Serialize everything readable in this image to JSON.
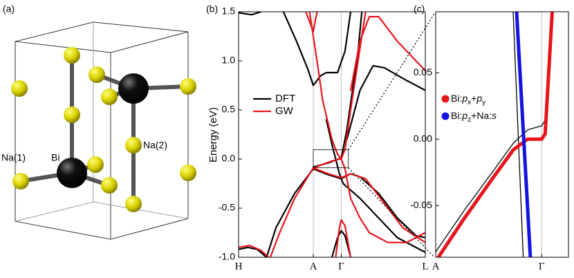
{
  "chart_data": [
    {
      "type": "structure",
      "panel_label": "(a)",
      "labels": [
        "Na(1)",
        "Bi",
        "Na(2)"
      ]
    },
    {
      "type": "line",
      "panel_label": "(b)",
      "ylabel": "Energy (eV)",
      "xlim": [
        0,
        1
      ],
      "xticks": [
        {
          "value": 0,
          "label": "H"
        },
        {
          "value": 0.4,
          "label": "A"
        },
        {
          "value": 0.55,
          "label": "Γ"
        },
        {
          "value": 1,
          "label": "L"
        }
      ],
      "ylim": [
        -1,
        1.5
      ],
      "yticks": [
        {
          "value": -1,
          "label": "-1.0"
        },
        {
          "value": -0.5,
          "label": "-0.5"
        },
        {
          "value": 0,
          "label": "0.0"
        },
        {
          "value": 0.5,
          "label": "0.5"
        },
        {
          "value": 1,
          "label": "1.0"
        },
        {
          "value": 1.5,
          "label": "1.5"
        }
      ],
      "series": [
        {
          "name": "DFT",
          "color": "#000000",
          "bands": [
            {
              "x": [
                0,
                0.07,
                0.12
              ],
              "values": [
                1.49,
                1.47,
                1.5
              ]
            },
            {
              "x": [
                0.24,
                0.31,
                0.37,
                0.4,
                0.44,
                0.47,
                0.53,
                0.57,
                0.6
              ],
              "values": [
                1.5,
                1.2,
                0.92,
                0.75,
                0.85,
                0.88,
                0.88,
                1.1,
                1.5
              ]
            },
            {
              "x": [
                0.4,
                0.48,
                0.52,
                0.55,
                0.58,
                0.61,
                0.64,
                0.66
              ],
              "values": [
                -0.08,
                -0.04,
                -0.01,
                0.01,
                0.3,
                0.7,
                1.1,
                1.5
              ]
            },
            {
              "x": [
                0.47,
                0.5,
                0.52,
                0.54,
                0.56,
                0.65,
                0.75,
                0.85,
                1
              ],
              "values": [
                0.4,
                0.15,
                0,
                -0.15,
                -0.25,
                -0.4,
                -0.6,
                -0.8,
                -0.95
              ]
            },
            {
              "x": [
                0.4,
                0.48,
                0.55,
                0.6,
                0.65,
                0.75,
                0.85,
                0.95,
                1
              ],
              "values": [
                -0.1,
                -0.16,
                -0.2,
                -0.15,
                -0.18,
                -0.35,
                -0.6,
                -0.78,
                -0.8
              ]
            },
            {
              "x": [
                0.4,
                0.3,
                0.2,
                0.15
              ],
              "values": [
                -0.1,
                -0.35,
                -0.7,
                -1
              ]
            },
            {
              "x": [
                0,
                0.05,
                0.1,
                0.15
              ],
              "values": [
                -0.92,
                -0.9,
                -0.92,
                -1
              ]
            },
            {
              "x": [
                0.5,
                0.53,
                0.55,
                0.57,
                0.6
              ],
              "values": [
                -1,
                -0.8,
                -0.73,
                -0.78,
                -1
              ]
            },
            {
              "x": [
                0.58,
                0.65,
                0.72,
                0.78,
                0.9,
                1
              ],
              "values": [
                0.2,
                0.7,
                0.95,
                0.93,
                0.8,
                0.7
              ]
            }
          ]
        },
        {
          "name": "GW",
          "color": "#e8141b",
          "bands": [
            {
              "x": [
                0.36,
                0.38,
                0.4,
                0.42
              ],
              "values": [
                1.5,
                1.4,
                1.3,
                1.5
              ]
            },
            {
              "x": [
                0.38,
                0.42,
                0.45,
                0.5,
                0.53,
                0.55,
                0.57,
                0.6,
                0.65,
                0.7,
                0.8,
                0.9,
                1
              ],
              "values": [
                1.5,
                1,
                0.6,
                0.2,
                0.05,
                0,
                -0.1,
                -0.4,
                -0.6,
                -0.75,
                -0.85,
                -0.85,
                -0.75
              ]
            },
            {
              "x": [
                0.4,
                0.5,
                0.54,
                0.55,
                0.57,
                0.6,
                0.64,
                0.68
              ],
              "values": [
                -0.09,
                -0.02,
                0,
                0,
                0.1,
                0.5,
                1,
                1.5
              ]
            },
            {
              "x": [
                0.4,
                0.48,
                0.55,
                0.6,
                0.68,
                0.78,
                0.88,
                1
              ],
              "values": [
                -0.09,
                -0.15,
                -0.19,
                -0.15,
                -0.2,
                -0.45,
                -0.7,
                -0.85
              ]
            },
            {
              "x": [
                0.4,
                0.3,
                0.22,
                0.17
              ],
              "values": [
                -0.09,
                -0.4,
                -0.75,
                -1
              ]
            },
            {
              "x": [
                0,
                0.06,
                0.12,
                0.16
              ],
              "values": [
                -0.9,
                -0.88,
                -0.93,
                -1
              ]
            },
            {
              "x": [
                0.52,
                0.54,
                0.55,
                0.57,
                0.6
              ],
              "values": [
                -1,
                -0.7,
                -0.62,
                -0.68,
                -1
              ]
            },
            {
              "x": [
                0.6,
                0.65,
                0.7,
                0.75,
                0.85,
                1
              ],
              "values": [
                0.7,
                1.2,
                1.45,
                1.45,
                1.2,
                0.9
              ]
            }
          ]
        }
      ]
    },
    {
      "type": "line",
      "panel_label": "(c)",
      "xlim": [
        0.4,
        0.588
      ],
      "xticks": [
        {
          "value": 0.4,
          "label": "A"
        },
        {
          "value": 0.55,
          "label": "Γ"
        }
      ],
      "ylim": [
        -0.089,
        0.096
      ],
      "yticks": [
        {
          "value": -0.05,
          "label": "-0.05"
        },
        {
          "value": 0,
          "label": "0.00"
        },
        {
          "value": 0.05,
          "label": "0.05"
        }
      ],
      "series": [
        {
          "color": "#000000",
          "bands": [
            {
              "x": [
                0.4,
                0.44,
                0.48,
                0.51,
                0.53,
                0.55,
                0.556,
                0.562,
                0.566
              ],
              "values": [
                -0.085,
                -0.054,
                -0.025,
                -0.003,
                0.007,
                0.01,
                0.015,
                0.06,
                0.096
              ]
            },
            {
              "x": [
                0.5097,
                0.524
              ],
              "values": [
                0.096,
                -0.089
              ]
            }
          ]
        },
        {
          "name_parts": [
            "Bi:",
            "p",
            "x",
            "+",
            "p",
            "y"
          ],
          "color": "#e8141b",
          "bands": [
            {
              "x": [
                0.4,
                0.44,
                0.48,
                0.51,
                0.53,
                0.55,
                0.555,
                0.56,
                0.565
              ],
              "values": [
                -0.092,
                -0.06,
                -0.03,
                -0.008,
                0,
                0,
                0.004,
                0.05,
                0.096
              ]
            }
          ]
        },
        {
          "name_parts": [
            "Bi:",
            "p",
            "z",
            "+Na:",
            "s"
          ],
          "color": "#1414e0",
          "bands": [
            {
              "x": [
                0.5146,
                0.534
              ],
              "values": [
                0.096,
                -0.089
              ]
            }
          ]
        }
      ]
    }
  ]
}
